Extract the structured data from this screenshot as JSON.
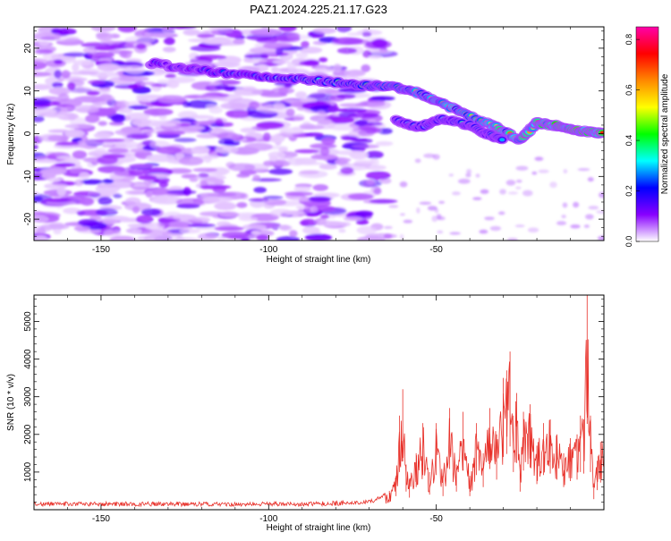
{
  "title": "PAZ1.2024.225.21.17.G23",
  "chart_data": [
    {
      "type": "heatmap",
      "xlabel": "Height of straight line (km)",
      "ylabel": "Frequency (Hz)",
      "xlim": [
        -170,
        0
      ],
      "ylim": [
        -25,
        25
      ],
      "xticks": [
        -150,
        -100,
        -50
      ],
      "yticks": [
        -20,
        -10,
        0,
        10,
        20
      ],
      "colorbar": {
        "label": "Normalized spectral amplitude",
        "range": [
          0,
          0.85
        ],
        "ticks": [
          0.0,
          0.2,
          0.4,
          0.6,
          0.8
        ],
        "tick_labels": [
          "0.0",
          "0.2",
          "0.4",
          "0.6",
          "0.8"
        ],
        "colors": [
          "#ffffff",
          "#8800ff",
          "#0000ff",
          "#00ffff",
          "#00ff00",
          "#ffff00",
          "#ff8800",
          "#ff0000",
          "#ff00aa"
        ]
      },
      "ridge": {
        "description": "dominant frequency track",
        "points": [
          {
            "x": -135,
            "y": 16.5
          },
          {
            "x": -120,
            "y": 14.8
          },
          {
            "x": -105,
            "y": 13.5
          },
          {
            "x": -90,
            "y": 12.8
          },
          {
            "x": -80,
            "y": 12.0
          },
          {
            "x": -70,
            "y": 11.3
          },
          {
            "x": -62,
            "y": 10.8
          },
          {
            "x": -55,
            "y": 9.5
          },
          {
            "x": -48,
            "y": 7.0
          },
          {
            "x": -40,
            "y": 4.0
          },
          {
            "x": -32,
            "y": 1.5
          },
          {
            "x": -25,
            "y": -1.5
          },
          {
            "x": -20,
            "y": 2.5
          },
          {
            "x": -15,
            "y": 2.0
          },
          {
            "x": -10,
            "y": 1.0
          },
          {
            "x": -5,
            "y": 0.5
          },
          {
            "x": 0,
            "y": 0.0
          }
        ],
        "secondary": [
          {
            "x": -62,
            "y": 3.0
          },
          {
            "x": -55,
            "y": 1.5
          },
          {
            "x": -48,
            "y": 3.5
          },
          {
            "x": -40,
            "y": 2.0
          },
          {
            "x": -35,
            "y": 0.0
          },
          {
            "x": -30,
            "y": -1.5
          }
        ],
        "peak_amplitude": 0.85
      }
    },
    {
      "type": "line",
      "xlabel": "Height of straight line (km)",
      "ylabel": "SNR (10 * v/v)",
      "xlim": [
        -170,
        0
      ],
      "ylim": [
        0,
        5700
      ],
      "xticks": [
        -150,
        -100,
        -50
      ],
      "yticks": [
        1000,
        2000,
        3000,
        4000,
        5000
      ],
      "line_color": "#e8312a",
      "series": [
        {
          "x": [
            -170,
            -150,
            -130,
            -110,
            -90,
            -75,
            -68,
            -64,
            -62,
            -61,
            -60,
            -59,
            -58,
            -56,
            -54,
            -52,
            -50,
            -48,
            -46,
            -44,
            -42,
            -40,
            -38,
            -36,
            -34,
            -32,
            -30,
            -29,
            -28,
            -27,
            -26,
            -25,
            -24,
            -22,
            -20,
            -18,
            -16,
            -14,
            -12,
            -10,
            -8,
            -7,
            -6,
            -5,
            -4,
            -3,
            -2,
            -1,
            0
          ],
          "values": [
            150,
            150,
            150,
            150,
            150,
            180,
            250,
            500,
            900,
            2500,
            3200,
            1200,
            800,
            1500,
            2300,
            1000,
            2300,
            900,
            2700,
            1200,
            2600,
            900,
            2300,
            1500,
            2700,
            2000,
            3500,
            3700,
            4200,
            2500,
            3100,
            1200,
            2600,
            2800,
            1700,
            2300,
            2400,
            2000,
            1500,
            1900,
            2000,
            2500,
            2400,
            5700,
            2500,
            700,
            1300,
            1800,
            2000
          ]
        }
      ]
    }
  ]
}
